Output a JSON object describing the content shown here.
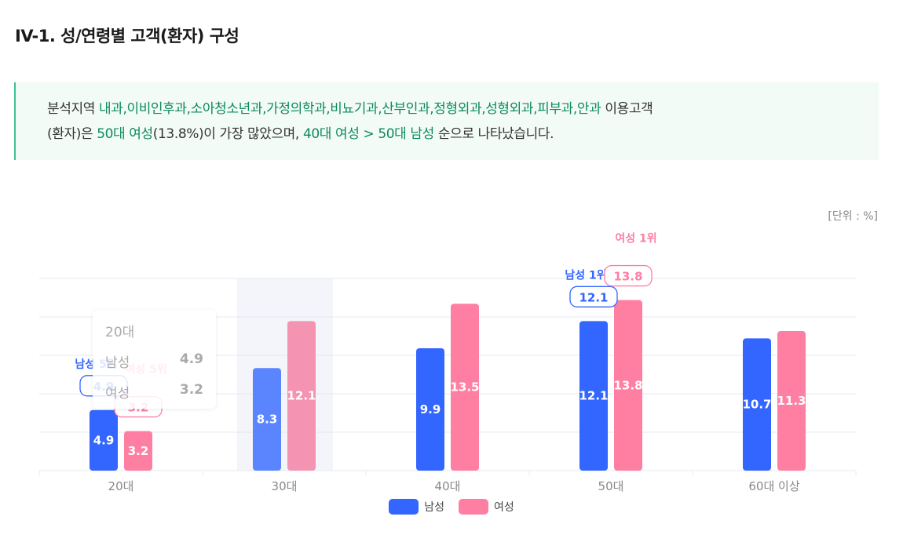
{
  "page": {
    "title": "IV-1. 성/연령별 고객(환자) 구성",
    "summary_line1": [
      {
        "text": "분석지역 ",
        "hl": false
      },
      {
        "text": "내과,이비인후과,소아청소년과,가정의학과,비뇨기과,산부인과,정형외과,성형외과,피부과,안과",
        "hl": true
      },
      {
        "text": " 이용고객",
        "hl": false
      }
    ],
    "summary_line2": [
      {
        "text": "(환자)은 ",
        "hl": false
      },
      {
        "text": "50대 여성",
        "hl": true
      },
      {
        "text": "(13.8%)이 가장 많았으며, ",
        "hl": false
      },
      {
        "text": "40대 여성 > 50대 남성",
        "hl": true
      },
      {
        "text": " 순으로 나타났습니다.",
        "hl": false
      }
    ],
    "unit": "[단위 : %]"
  },
  "tooltip": {
    "title": "20대",
    "rows": [
      {
        "label": "남성",
        "value": "4.9"
      },
      {
        "label": "여성",
        "value": "3.2"
      }
    ]
  },
  "rank_labels": [
    {
      "text": "남성 5위",
      "series": "남성",
      "category": "20대",
      "value": "4.9"
    },
    {
      "text": "여성 5위",
      "series": "여성",
      "category": "20대",
      "value": "3.2"
    },
    {
      "text": "남성 1위",
      "series": "남성",
      "category": "50대",
      "value": "12.1"
    },
    {
      "text": "여성 1위",
      "series": "여성",
      "category": "50대",
      "value": "13.8"
    }
  ],
  "colors": {
    "male": "#3366ff",
    "female": "#ff7fa3",
    "male_light": "#5b84ff",
    "female_light": "#f594b2",
    "hover_band": "#f3f5fa",
    "grid": "#e6e8f0",
    "highlight": "#0d8a5c"
  },
  "chart_data": {
    "type": "bar",
    "categories": [
      "20대",
      "30대",
      "40대",
      "50대",
      "60대 이상"
    ],
    "series": [
      {
        "name": "남성",
        "values": [
          4.9,
          8.3,
          9.9,
          12.1,
          10.7
        ]
      },
      {
        "name": "여성",
        "values": [
          3.2,
          12.1,
          13.5,
          13.8,
          11.3
        ]
      }
    ],
    "ylim": [
      0,
      16.5
    ],
    "grid": true,
    "legend": "bottom-center",
    "highlighted_category": "30대"
  }
}
